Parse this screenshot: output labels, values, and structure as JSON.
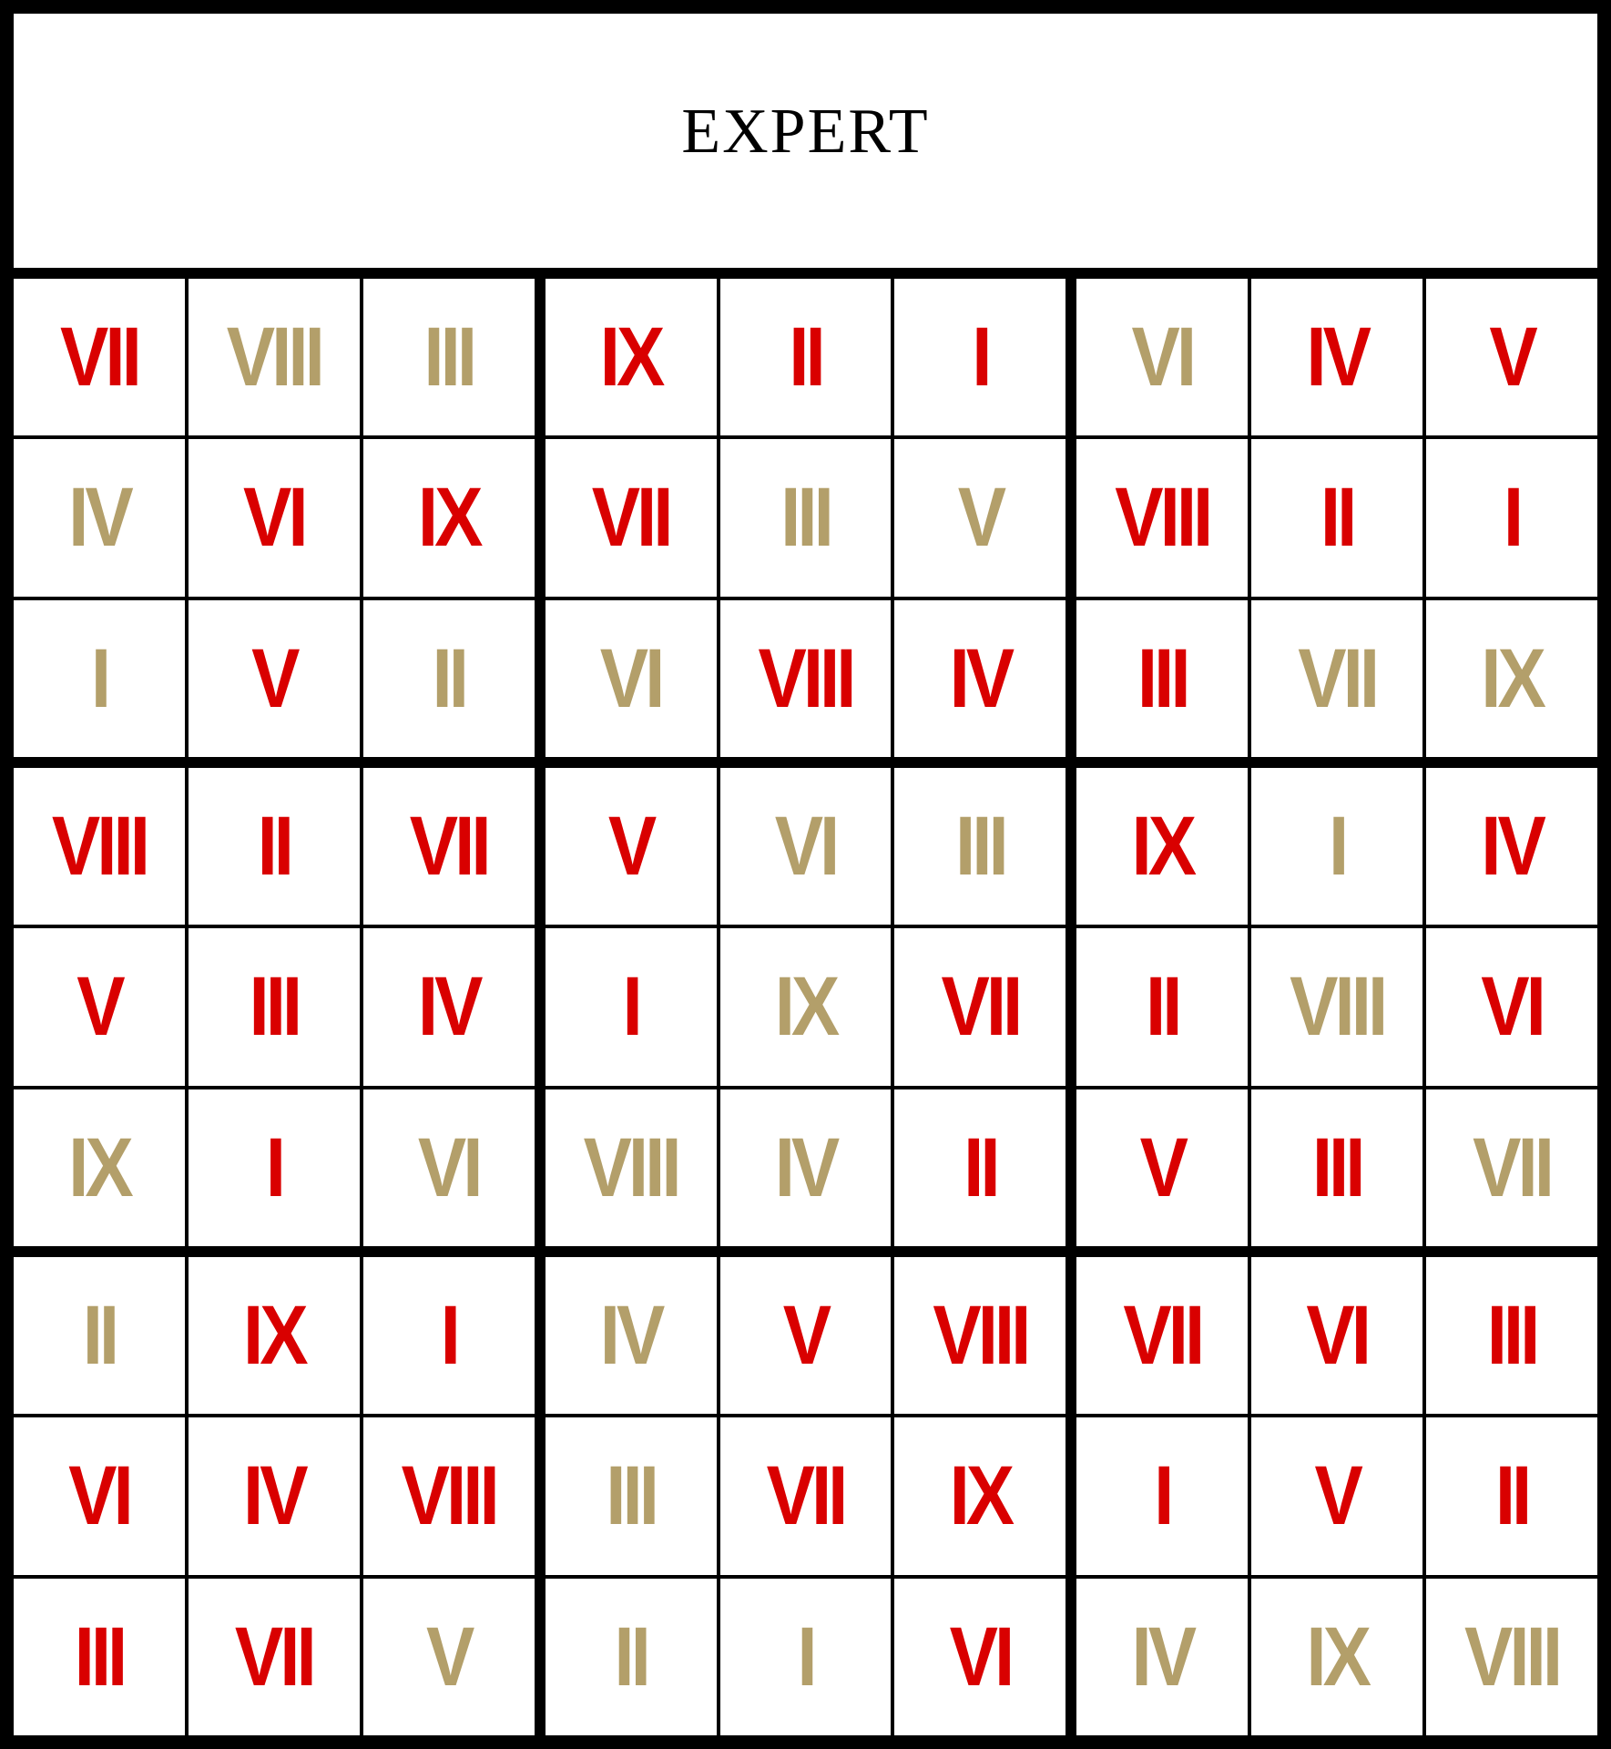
{
  "title": "EXPERT",
  "colors": {
    "red": "#d90000",
    "tan": "#b39f6a",
    "grid": "#000000",
    "cell": "#ffffff"
  },
  "grid": [
    [
      [
        "VII",
        "red"
      ],
      [
        "VIII",
        "tan"
      ],
      [
        "III",
        "tan"
      ],
      [
        "IX",
        "red"
      ],
      [
        "II",
        "red"
      ],
      [
        "I",
        "red"
      ],
      [
        "VI",
        "tan"
      ],
      [
        "IV",
        "red"
      ],
      [
        "V",
        "red"
      ]
    ],
    [
      [
        "IV",
        "tan"
      ],
      [
        "VI",
        "red"
      ],
      [
        "IX",
        "red"
      ],
      [
        "VII",
        "red"
      ],
      [
        "III",
        "tan"
      ],
      [
        "V",
        "tan"
      ],
      [
        "VIII",
        "red"
      ],
      [
        "II",
        "red"
      ],
      [
        "I",
        "red"
      ]
    ],
    [
      [
        "I",
        "tan"
      ],
      [
        "V",
        "red"
      ],
      [
        "II",
        "tan"
      ],
      [
        "VI",
        "tan"
      ],
      [
        "VIII",
        "red"
      ],
      [
        "IV",
        "red"
      ],
      [
        "III",
        "red"
      ],
      [
        "VII",
        "tan"
      ],
      [
        "IX",
        "tan"
      ]
    ],
    [
      [
        "VIII",
        "red"
      ],
      [
        "II",
        "red"
      ],
      [
        "VII",
        "red"
      ],
      [
        "V",
        "red"
      ],
      [
        "VI",
        "tan"
      ],
      [
        "III",
        "tan"
      ],
      [
        "IX",
        "red"
      ],
      [
        "I",
        "tan"
      ],
      [
        "IV",
        "red"
      ]
    ],
    [
      [
        "V",
        "red"
      ],
      [
        "III",
        "red"
      ],
      [
        "IV",
        "red"
      ],
      [
        "I",
        "red"
      ],
      [
        "IX",
        "tan"
      ],
      [
        "VII",
        "red"
      ],
      [
        "II",
        "red"
      ],
      [
        "VIII",
        "tan"
      ],
      [
        "VI",
        "red"
      ]
    ],
    [
      [
        "IX",
        "tan"
      ],
      [
        "I",
        "red"
      ],
      [
        "VI",
        "tan"
      ],
      [
        "VIII",
        "tan"
      ],
      [
        "IV",
        "tan"
      ],
      [
        "II",
        "red"
      ],
      [
        "V",
        "red"
      ],
      [
        "III",
        "red"
      ],
      [
        "VII",
        "tan"
      ]
    ],
    [
      [
        "II",
        "tan"
      ],
      [
        "IX",
        "red"
      ],
      [
        "I",
        "red"
      ],
      [
        "IV",
        "tan"
      ],
      [
        "V",
        "red"
      ],
      [
        "VIII",
        "red"
      ],
      [
        "VII",
        "red"
      ],
      [
        "VI",
        "red"
      ],
      [
        "III",
        "red"
      ]
    ],
    [
      [
        "VI",
        "red"
      ],
      [
        "IV",
        "red"
      ],
      [
        "VIII",
        "red"
      ],
      [
        "III",
        "tan"
      ],
      [
        "VII",
        "red"
      ],
      [
        "IX",
        "red"
      ],
      [
        "I",
        "red"
      ],
      [
        "V",
        "red"
      ],
      [
        "II",
        "red"
      ]
    ],
    [
      [
        "III",
        "red"
      ],
      [
        "VII",
        "red"
      ],
      [
        "V",
        "tan"
      ],
      [
        "II",
        "tan"
      ],
      [
        "I",
        "tan"
      ],
      [
        "VI",
        "red"
      ],
      [
        "IV",
        "tan"
      ],
      [
        "IX",
        "tan"
      ],
      [
        "VIII",
        "tan"
      ]
    ]
  ]
}
